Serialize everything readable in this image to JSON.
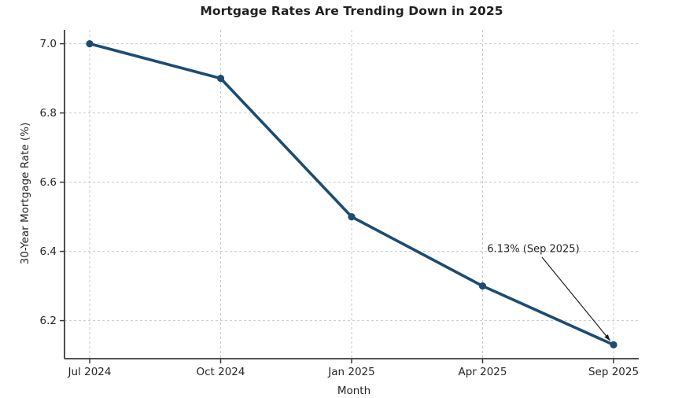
{
  "chart_data": {
    "type": "line",
    "title": "Mortgage Rates Are Trending Down in 2025",
    "xlabel": "Month",
    "ylabel": "30-Year Mortgage Rate (%)",
    "categories": [
      "Jul 2024",
      "Oct 2024",
      "Jan 2025",
      "Apr 2025",
      "Sep 2025"
    ],
    "values": [
      7.0,
      6.9,
      6.5,
      6.3,
      6.13
    ],
    "yticks": [
      7.0,
      6.8,
      6.6,
      6.4,
      6.2
    ],
    "ytick_labels": [
      "7.0",
      "6.8",
      "6.6",
      "6.4",
      "6.2"
    ],
    "ylim": [
      6.09,
      7.04
    ],
    "grid": true,
    "grid_style": "dashed",
    "legend_position": "none",
    "annotation": {
      "text": "6.13% (Sep 2025)",
      "target_category": "Sep 2025",
      "target_value": 6.13
    },
    "colors": {
      "line": "#1c4c72",
      "marker": "#1c4c72",
      "grid": "#c9c9c9",
      "axis": "#3a3a3a",
      "tick_text": "#262626",
      "title_text": "#1f1f1f",
      "annotation_text": "#1f1f1f",
      "arrow": "#1f1f1f",
      "background": "#ffffff"
    }
  }
}
